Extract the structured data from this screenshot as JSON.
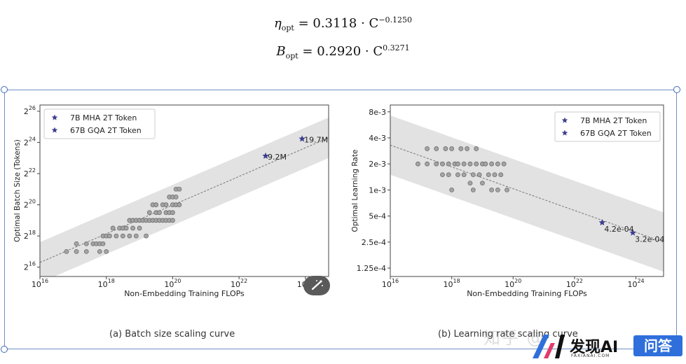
{
  "formulas": {
    "eta": {
      "symbol": "η",
      "sub": "opt",
      "rhs": "= 0.3118 · C",
      "exp": "−0.1250"
    },
    "batch": {
      "symbol": "B",
      "sub": "opt",
      "rhs": "= 0.2920 · C",
      "exp": "0.3271"
    }
  },
  "captions": {
    "a": "(a) Batch size scaling curve",
    "b": "(b) Learning rate scaling curve"
  },
  "watermark": {
    "zhihu": "知乎 @"
  },
  "logo": {
    "name": "发现AI",
    "sub": "FAXIANAI.COM",
    "badge": "问答"
  },
  "colors": {
    "star": "#3d3f8f",
    "point": "#9a9a9a",
    "band": "#e2e2e2",
    "frame": "#6f8ec9",
    "badge": "#2f6fdc"
  },
  "chart_data": [
    {
      "type": "scatter",
      "title": "",
      "xlabel": "Non-Embedding Training FLOPs",
      "ylabel": "Optimal Batch Size (Tokens)",
      "xscale": "log",
      "yscale": "log2",
      "xticks": [
        "10^16",
        "10^18",
        "10^20",
        "10^22",
        "10^24"
      ],
      "yticks": [
        "2^16",
        "2^18",
        "2^20",
        "2^22",
        "2^24",
        "2^26"
      ],
      "xlim_log10": [
        16,
        24.7
      ],
      "ylim_log2": [
        15.4,
        26.4
      ],
      "legend": {
        "position": "top-left",
        "entries": [
          "7B MHA 2T Token",
          "67B GQA 2T Token"
        ]
      },
      "fit_line": {
        "from": [
          16,
          16.3
        ],
        "to": [
          24.7,
          24.3
        ]
      },
      "band_width_log2": 1.3,
      "points_log10x_log2y": [
        [
          16.8,
          17
        ],
        [
          17.1,
          17
        ],
        [
          17.1,
          17.5
        ],
        [
          17.4,
          17
        ],
        [
          17.4,
          17.5
        ],
        [
          17.6,
          17.5
        ],
        [
          17.7,
          17.5
        ],
        [
          17.8,
          17
        ],
        [
          17.8,
          17.5
        ],
        [
          17.9,
          17.5
        ],
        [
          17.9,
          18
        ],
        [
          18,
          18
        ],
        [
          18,
          17
        ],
        [
          18.1,
          18
        ],
        [
          18.2,
          18.5
        ],
        [
          18.3,
          18
        ],
        [
          18.4,
          18.5
        ],
        [
          18.5,
          18
        ],
        [
          18.5,
          18.5
        ],
        [
          18.6,
          18.5
        ],
        [
          18.7,
          19
        ],
        [
          18.7,
          18
        ],
        [
          18.8,
          18.5
        ],
        [
          18.8,
          19
        ],
        [
          18.9,
          19
        ],
        [
          18.9,
          18
        ],
        [
          19,
          19
        ],
        [
          19,
          18.5
        ],
        [
          19.1,
          19
        ],
        [
          19.2,
          19
        ],
        [
          19.2,
          18
        ],
        [
          19.3,
          19
        ],
        [
          19.3,
          19.5
        ],
        [
          19.4,
          19
        ],
        [
          19.4,
          20
        ],
        [
          19.5,
          19.5
        ],
        [
          19.5,
          19
        ],
        [
          19.5,
          20
        ],
        [
          19.6,
          19
        ],
        [
          19.6,
          19.5
        ],
        [
          19.7,
          20
        ],
        [
          19.7,
          19
        ],
        [
          19.8,
          19.5
        ],
        [
          19.8,
          20
        ],
        [
          19.8,
          19
        ],
        [
          19.9,
          19.5
        ],
        [
          19.9,
          20.5
        ],
        [
          19.9,
          19
        ],
        [
          20,
          20
        ],
        [
          20,
          19.5
        ],
        [
          20,
          20.5
        ],
        [
          20,
          19
        ],
        [
          20.1,
          20
        ],
        [
          20.1,
          21
        ],
        [
          20.1,
          20.5
        ],
        [
          20.2,
          21
        ],
        [
          20.2,
          20
        ]
      ],
      "series": [
        {
          "name": "7B MHA 2T Token",
          "x_log10": 22.8,
          "y_log2": 23.13,
          "label": "9.2M"
        },
        {
          "name": "67B GQA 2T Token",
          "x_log10": 23.9,
          "y_log2": 24.23,
          "label": "19.7M"
        }
      ]
    },
    {
      "type": "scatter",
      "title": "",
      "xlabel": "Non-Embedding Training FLOPs",
      "ylabel": "Optimal Learning Rate",
      "xscale": "log",
      "yscale": "log",
      "xticks": [
        "10^16",
        "10^18",
        "10^20",
        "10^22",
        "10^24"
      ],
      "yticks": [
        "8e-3",
        "4e-3",
        "2e-3",
        "1e-3",
        "5e-4",
        "2.5e-4",
        "1.25e-4"
      ],
      "xlim_log10": [
        16,
        24.9
      ],
      "legend": {
        "position": "top-right",
        "entries": [
          "7B MHA 2T Token",
          "67B GQA 2T Token"
        ]
      },
      "fit_line_lr": {
        "from": [
          16,
          0.0033
        ],
        "to": [
          24.9,
          0.00025
        ]
      },
      "band_factor": 2.2,
      "points_log10x_lr": [
        [
          16.9,
          0.002
        ],
        [
          17.2,
          0.002
        ],
        [
          17.2,
          0.003
        ],
        [
          17.5,
          0.002
        ],
        [
          17.5,
          0.003
        ],
        [
          17.7,
          0.0015
        ],
        [
          17.7,
          0.002
        ],
        [
          17.8,
          0.003
        ],
        [
          17.9,
          0.002
        ],
        [
          17.9,
          0.0015
        ],
        [
          18,
          0.001
        ],
        [
          18,
          0.003
        ],
        [
          18.1,
          0.002
        ],
        [
          18.2,
          0.0015
        ],
        [
          18.2,
          0.002
        ],
        [
          18.3,
          0.003
        ],
        [
          18.4,
          0.0015
        ],
        [
          18.4,
          0.002
        ],
        [
          18.5,
          0.003
        ],
        [
          18.6,
          0.002
        ],
        [
          18.6,
          0.0012
        ],
        [
          18.7,
          0.001
        ],
        [
          18.7,
          0.0015
        ],
        [
          18.8,
          0.002
        ],
        [
          18.8,
          0.003
        ],
        [
          18.9,
          0.0015
        ],
        [
          19,
          0.002
        ],
        [
          19,
          0.0012
        ],
        [
          19.1,
          0.002
        ],
        [
          19.2,
          0.0015
        ],
        [
          19.3,
          0.002
        ],
        [
          19.3,
          0.001
        ],
        [
          19.4,
          0.0015
        ],
        [
          19.5,
          0.002
        ],
        [
          19.5,
          0.001
        ],
        [
          19.6,
          0.0015
        ],
        [
          19.7,
          0.002
        ],
        [
          19.8,
          0.001
        ]
      ],
      "series": [
        {
          "name": "7B MHA 2T Token",
          "x_log10": 22.9,
          "y": 0.00042,
          "label": "4.2e-04"
        },
        {
          "name": "67B GQA 2T Token",
          "x_log10": 23.9,
          "y": 0.00032,
          "label": "3.2e-04"
        }
      ]
    }
  ]
}
